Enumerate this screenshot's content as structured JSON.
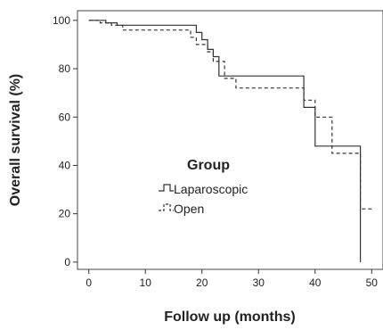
{
  "chart_data": {
    "type": "line",
    "subtype": "kaplan-meier step plot",
    "title": "",
    "xlabel": "Follow up (months)",
    "ylabel": "Overall survival (%)",
    "xlim": [
      -2,
      52
    ],
    "ylim": [
      -3,
      104
    ],
    "xticks": [
      0,
      10,
      20,
      30,
      40,
      50
    ],
    "yticks": [
      0,
      20,
      40,
      60,
      80,
      100
    ],
    "grid": false,
    "legend": {
      "title": "Group",
      "placement": "center-left",
      "entries": [
        "Laparoscopic",
        "Open"
      ]
    },
    "series": [
      {
        "name": "Laparoscopic",
        "line_style": "solid",
        "color": "#333333",
        "x": [
          0,
          3,
          5,
          18,
          19,
          20,
          21,
          22,
          23,
          37,
          38,
          40,
          48,
          48
        ],
        "y": [
          100,
          99,
          98,
          98,
          95,
          92,
          88,
          85,
          77,
          77,
          64,
          48,
          48,
          0
        ]
      },
      {
        "name": "Open",
        "line_style": "dashed",
        "color": "#333333",
        "x": [
          0,
          2,
          4,
          6,
          17,
          18,
          19,
          21,
          22,
          24,
          26,
          37,
          38,
          40,
          43,
          48,
          48,
          50
        ],
        "y": [
          100,
          99,
          98,
          96,
          96,
          93,
          90,
          87,
          83,
          76,
          72,
          72,
          67,
          60,
          45,
          45,
          22,
          22
        ]
      }
    ]
  }
}
